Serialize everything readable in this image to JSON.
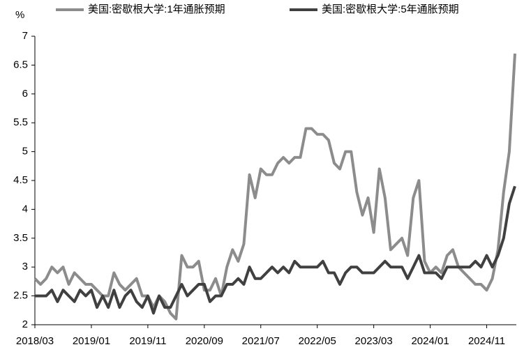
{
  "chart_data": {
    "type": "line",
    "y_unit": "%",
    "categories": [
      "2018/03",
      null,
      null,
      null,
      null,
      null,
      null,
      null,
      null,
      null,
      "2019/01",
      null,
      null,
      null,
      null,
      null,
      null,
      null,
      null,
      null,
      "2019/11",
      null,
      null,
      null,
      null,
      null,
      null,
      null,
      null,
      null,
      "2020/09",
      null,
      null,
      null,
      null,
      null,
      null,
      null,
      null,
      null,
      "2021/07",
      null,
      null,
      null,
      null,
      null,
      null,
      null,
      null,
      null,
      "2022/05",
      null,
      null,
      null,
      null,
      null,
      null,
      null,
      null,
      null,
      "2023/03",
      null,
      null,
      null,
      null,
      null,
      null,
      null,
      null,
      null,
      "2024/01",
      null,
      null,
      null,
      null,
      null,
      null,
      null,
      null,
      null,
      "2024/11",
      null,
      null,
      null,
      null,
      null
    ],
    "series": [
      {
        "name": "美国:密歇根大学:1年通胀预期",
        "color": "#8c8c8c",
        "values": [
          2.8,
          2.7,
          2.8,
          3.0,
          2.9,
          3.0,
          2.7,
          2.9,
          2.8,
          2.7,
          2.7,
          2.6,
          2.5,
          2.5,
          2.9,
          2.7,
          2.6,
          2.7,
          2.8,
          2.5,
          2.5,
          2.3,
          2.5,
          2.4,
          2.2,
          2.1,
          3.2,
          3.0,
          3.0,
          3.1,
          2.6,
          2.6,
          2.8,
          2.5,
          3.0,
          3.3,
          3.1,
          3.4,
          4.6,
          4.2,
          4.7,
          4.6,
          4.6,
          4.8,
          4.9,
          4.8,
          4.9,
          4.9,
          5.4,
          5.4,
          5.3,
          5.3,
          5.2,
          4.8,
          4.7,
          5.0,
          5.0,
          4.3,
          3.9,
          4.2,
          3.6,
          4.7,
          4.2,
          3.3,
          3.4,
          3.5,
          3.2,
          4.2,
          4.5,
          3.1,
          2.9,
          3.0,
          2.9,
          3.2,
          3.3,
          3.0,
          2.9,
          2.8,
          2.7,
          2.7,
          2.6,
          2.8,
          3.3,
          4.3,
          5.0,
          6.7
        ]
      },
      {
        "name": "美国:密歇根大学:5年通胀预期",
        "color": "#404040",
        "values": [
          2.5,
          2.5,
          2.5,
          2.6,
          2.4,
          2.6,
          2.5,
          2.4,
          2.6,
          2.5,
          2.6,
          2.3,
          2.5,
          2.3,
          2.6,
          2.3,
          2.5,
          2.6,
          2.4,
          2.3,
          2.5,
          2.2,
          2.5,
          2.3,
          2.3,
          2.5,
          2.7,
          2.5,
          2.6,
          2.7,
          2.7,
          2.4,
          2.5,
          2.5,
          2.7,
          2.7,
          2.8,
          2.7,
          3.0,
          2.8,
          2.8,
          2.9,
          3.0,
          2.9,
          3.0,
          2.9,
          3.1,
          3.0,
          3.0,
          3.0,
          3.0,
          3.1,
          2.9,
          2.9,
          2.7,
          2.9,
          3.0,
          3.0,
          2.9,
          2.9,
          2.9,
          3.0,
          3.1,
          3.0,
          3.0,
          3.0,
          2.8,
          3.0,
          3.2,
          2.9,
          2.9,
          2.9,
          2.8,
          3.0,
          3.0,
          3.0,
          3.0,
          3.0,
          3.1,
          3.0,
          3.2,
          3.0,
          3.2,
          3.5,
          4.1,
          4.4
        ]
      }
    ],
    "ylim": [
      2,
      7
    ],
    "yticks": [
      2,
      2.5,
      3,
      3.5,
      4,
      4.5,
      5,
      5.5,
      6,
      6.5,
      7
    ],
    "grid": false,
    "legend": "top"
  }
}
